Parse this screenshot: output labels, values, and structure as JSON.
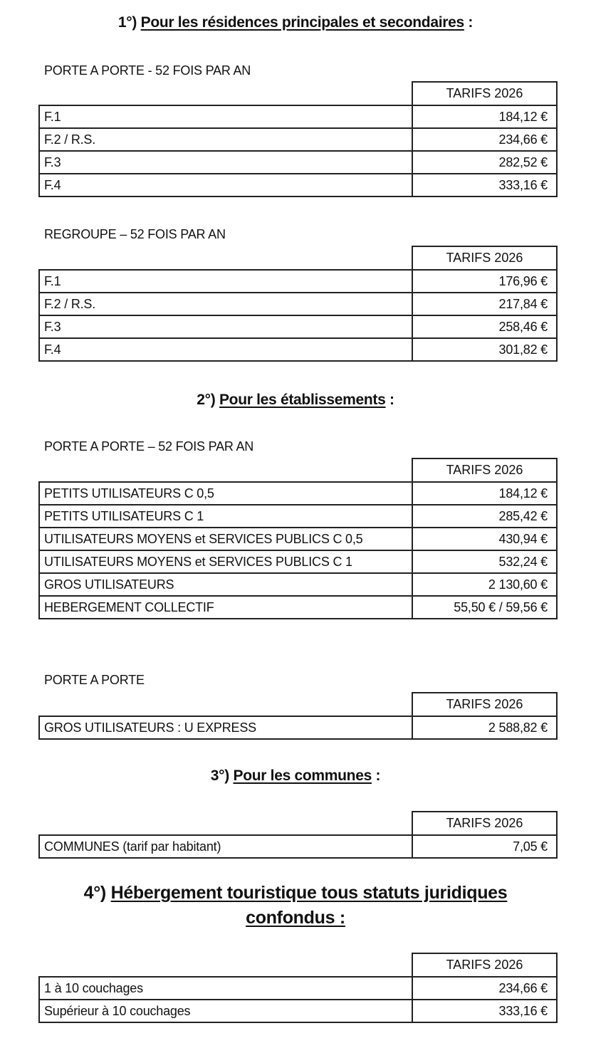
{
  "sections": [
    {
      "number": "1°)",
      "title": "Pour les résidences principales et secondaires",
      "suffix": " :"
    },
    {
      "number": "2°)",
      "title": "Pour les établissements",
      "suffix": " :"
    },
    {
      "number": "3°)",
      "title": "Pour les communes",
      "suffix": " :"
    },
    {
      "number": "4°)",
      "title_line1": "Hébergement touristique tous statuts juridiques",
      "title_line2": "confondus :"
    }
  ],
  "tables": [
    {
      "caption": "PORTE A PORTE - 52 FOIS PAR AN",
      "header": "TARIFS 2026",
      "rows": [
        {
          "name": "F.1",
          "value": "184,12 €"
        },
        {
          "name": "F.2 / R.S.",
          "value": "234,66 €"
        },
        {
          "name": "F.3",
          "value": "282,52 €"
        },
        {
          "name": "F.4",
          "value": "333,16 €"
        }
      ]
    },
    {
      "caption": "REGROUPE – 52 FOIS PAR AN",
      "header": "TARIFS 2026",
      "rows": [
        {
          "name": "F.1",
          "value": "176,96 €"
        },
        {
          "name": "F.2 / R.S.",
          "value": "217,84 €"
        },
        {
          "name": "F.3",
          "value": "258,46 €"
        },
        {
          "name": "F.4",
          "value": "301,82 €"
        }
      ]
    },
    {
      "caption": "PORTE A PORTE – 52 FOIS PAR AN",
      "header": "TARIFS 2026",
      "rows": [
        {
          "name": "PETITS UTILISATEURS C 0,5",
          "value": "184,12 €"
        },
        {
          "name": "PETITS UTILISATEURS C 1",
          "value": "285,42 €"
        },
        {
          "name": "UTILISATEURS MOYENS et SERVICES PUBLICS C 0,5",
          "value": "430,94 €"
        },
        {
          "name": "UTILISATEURS MOYENS et SERVICES PUBLICS C 1",
          "value": "532,24 €"
        },
        {
          "name": "GROS UTILISATEURS",
          "value": "2 130,60 €"
        },
        {
          "name": "HEBERGEMENT COLLECTIF",
          "value": "55,50 € / 59,56 €"
        }
      ]
    },
    {
      "caption": "PORTE A PORTE",
      "header": "TARIFS 2026",
      "rows": [
        {
          "name": "GROS UTILISATEURS : U EXPRESS",
          "value": "2 588,82 €"
        }
      ]
    },
    {
      "caption": "",
      "header": "TARIFS 2026",
      "rows": [
        {
          "name": "COMMUNES (tarif par habitant)",
          "value": "7,05 €"
        }
      ]
    },
    {
      "caption": "",
      "header": "TARIFS 2026",
      "rows": [
        {
          "name": "1 à 10 couchages",
          "value": "234,66 €"
        },
        {
          "name": "Supérieur à 10 couchages",
          "value": "333,16 €"
        }
      ]
    }
  ]
}
